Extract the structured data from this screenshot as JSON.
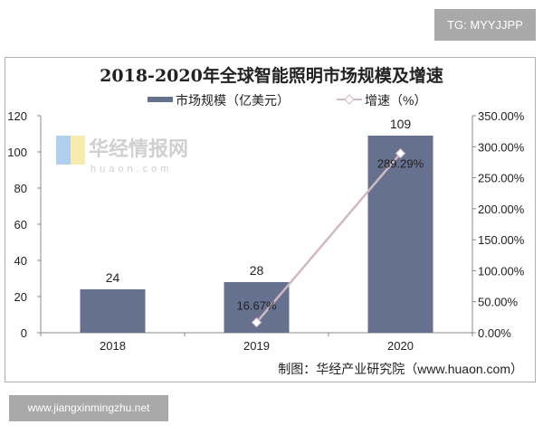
{
  "watermark_top": "TG: MYYJJPP",
  "watermark_bottom": "www.jiangxinmingzhu.net",
  "logo_text": "华经情报网",
  "logo_sub": "huaon.com",
  "source": "制图：华经产业研究院（www.huaon.com）",
  "chart_data": {
    "type": "bar+line",
    "title": "2018-2020年全球智能照明市场规模及增速",
    "categories": [
      "2018",
      "2019",
      "2020"
    ],
    "series": [
      {
        "name": "市场规模（亿美元）",
        "type": "bar",
        "axis": "left",
        "values": [
          24,
          28,
          109
        ],
        "labels": [
          "24",
          "28",
          "109"
        ],
        "color": "#66708f"
      },
      {
        "name": "增速（%）",
        "type": "line",
        "axis": "right",
        "x": [
          "2019",
          "2020"
        ],
        "values": [
          16.67,
          289.29
        ],
        "labels": [
          "16.67%",
          "289.29%"
        ],
        "color": "#d4b8c0",
        "marker": "diamond"
      }
    ],
    "y_left": {
      "range": [
        0,
        120
      ],
      "ticks": [
        "0",
        "20",
        "40",
        "60",
        "80",
        "100",
        "120"
      ]
    },
    "y_right": {
      "range": [
        0,
        350
      ],
      "ticks": [
        "0.00%",
        "50.00%",
        "100.00%",
        "150.00%",
        "200.00%",
        "250.00%",
        "300.00%",
        "350.00%"
      ]
    },
    "legend": "top",
    "grid": false
  }
}
